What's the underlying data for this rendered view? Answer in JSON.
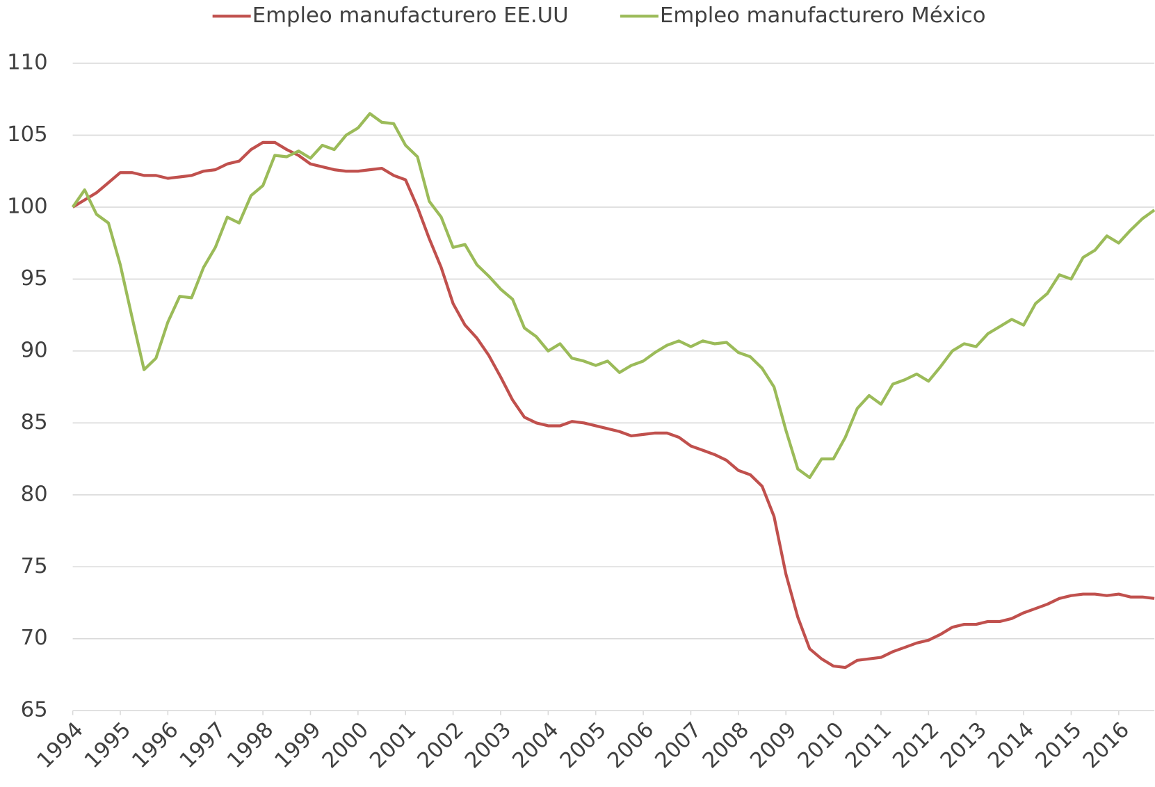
{
  "chart_data": {
    "type": "line",
    "x": [
      1994,
      1994.25,
      1994.5,
      1994.75,
      1995,
      1995.25,
      1995.5,
      1995.75,
      1996,
      1996.25,
      1996.5,
      1996.75,
      1997,
      1997.25,
      1997.5,
      1997.75,
      1998,
      1998.25,
      1998.5,
      1998.75,
      1999,
      1999.25,
      1999.5,
      1999.75,
      2000,
      2000.25,
      2000.5,
      2000.75,
      2001,
      2001.25,
      2001.5,
      2001.75,
      2002,
      2002.25,
      2002.5,
      2002.75,
      2003,
      2003.25,
      2003.5,
      2003.75,
      2004,
      2004.25,
      2004.5,
      2004.75,
      2005,
      2005.25,
      2005.5,
      2005.75,
      2006,
      2006.25,
      2006.5,
      2006.75,
      2007,
      2007.25,
      2007.5,
      2007.75,
      2008,
      2008.25,
      2008.5,
      2008.75,
      2009,
      2009.25,
      2009.5,
      2009.75,
      2010,
      2010.25,
      2010.5,
      2010.75,
      2011,
      2011.25,
      2011.5,
      2011.75,
      2012,
      2012.25,
      2012.5,
      2012.75,
      2013,
      2013.25,
      2013.5,
      2013.75,
      2014,
      2014.25,
      2014.5,
      2014.75,
      2015,
      2015.25,
      2015.5,
      2015.75,
      2016,
      2016.25,
      2016.5,
      2016.75
    ],
    "series": [
      {
        "name": "Empleo manufacturero EE.UU",
        "color": "#c0504d",
        "values": [
          100,
          100.5,
          101,
          101.7,
          102.4,
          102.4,
          102.2,
          102.2,
          102.0,
          102.1,
          102.2,
          102.5,
          102.6,
          103.0,
          103.2,
          104.0,
          104.5,
          104.5,
          104.0,
          103.6,
          103.0,
          102.8,
          102.6,
          102.5,
          102.5,
          102.6,
          102.7,
          102.2,
          101.9,
          100.0,
          97.8,
          95.8,
          93.3,
          91.8,
          90.9,
          89.7,
          88.2,
          86.6,
          85.4,
          85.0,
          84.8,
          84.8,
          85.1,
          85.0,
          84.8,
          84.6,
          84.4,
          84.1,
          84.2,
          84.3,
          84.3,
          84.0,
          83.4,
          83.1,
          82.8,
          82.4,
          81.7,
          81.4,
          80.6,
          78.5,
          74.5,
          71.5,
          69.3,
          68.6,
          68.1,
          68.0,
          68.5,
          68.6,
          68.7,
          69.1,
          69.4,
          69.7,
          69.9,
          70.3,
          70.8,
          71.0,
          71.0,
          71.2,
          71.2,
          71.4,
          71.8,
          72.1,
          72.4,
          72.8,
          73.0,
          73.1,
          73.1,
          73.0,
          73.1,
          72.9,
          72.9,
          72.8
        ]
      },
      {
        "name": "Empleo manufacturero México",
        "color": "#9bbb59",
        "values": [
          100,
          101.2,
          99.5,
          98.9,
          96.0,
          92.3,
          88.7,
          89.5,
          92.0,
          93.8,
          93.7,
          95.8,
          97.2,
          99.3,
          98.9,
          100.8,
          101.5,
          103.6,
          103.5,
          103.9,
          103.4,
          104.3,
          104.0,
          105.0,
          105.5,
          106.5,
          105.9,
          105.8,
          104.3,
          103.5,
          100.4,
          99.3,
          97.2,
          97.4,
          96.0,
          95.2,
          94.3,
          93.6,
          91.6,
          91.0,
          90.0,
          90.5,
          89.5,
          89.3,
          89.0,
          89.3,
          88.5,
          89.0,
          89.3,
          89.9,
          90.4,
          90.7,
          90.3,
          90.7,
          90.5,
          90.6,
          89.9,
          89.6,
          88.8,
          87.5,
          84.5,
          81.8,
          81.2,
          82.5,
          82.5,
          84.0,
          86.0,
          86.9,
          86.3,
          87.7,
          88.0,
          88.4,
          87.9,
          88.9,
          90.0,
          90.5,
          90.3,
          91.2,
          91.7,
          92.2,
          91.8,
          93.3,
          94.0,
          95.3,
          95.0,
          96.5,
          97.0,
          98.0,
          97.5,
          98.4,
          99.2,
          99.8
        ]
      }
    ],
    "xlim": [
      1994,
      2016.75
    ],
    "xticks": [
      1994,
      1995,
      1996,
      1997,
      1998,
      1999,
      2000,
      2001,
      2002,
      2003,
      2004,
      2005,
      2006,
      2007,
      2008,
      2009,
      2010,
      2011,
      2012,
      2013,
      2014,
      2015,
      2016
    ],
    "ylim": [
      65,
      110
    ],
    "yticks": [
      65,
      70,
      75,
      80,
      85,
      90,
      95,
      100,
      105,
      110
    ],
    "grid": true,
    "legend": "top"
  }
}
